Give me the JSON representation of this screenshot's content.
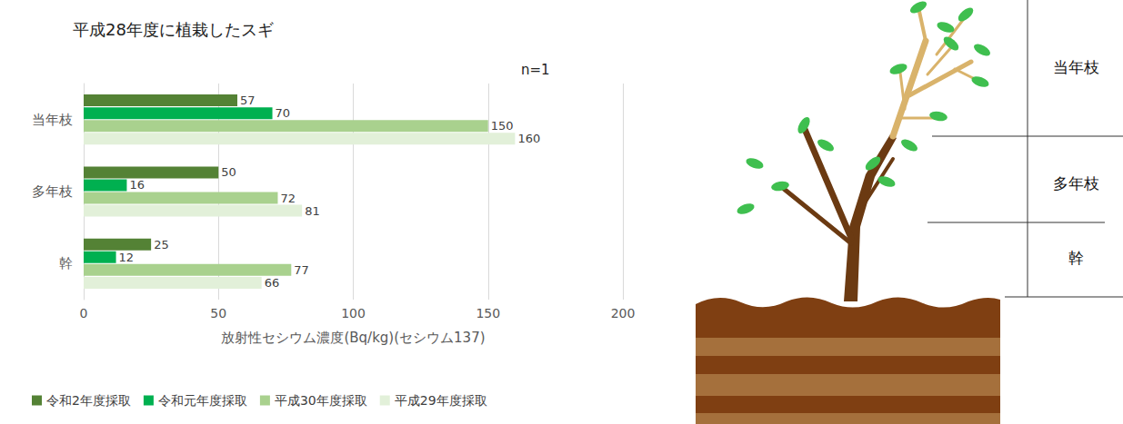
{
  "chart_data": {
    "type": "bar",
    "title": "平成28年度に植栽したスギ",
    "subtitle": "n=1",
    "orientation": "horizontal",
    "categories": [
      "当年枝",
      "多年枝",
      "幹"
    ],
    "series": [
      {
        "name": "令和2年度採取",
        "color": "#548235",
        "values": [
          57,
          50,
          25
        ]
      },
      {
        "name": "令和元年度採取",
        "color": "#00b050",
        "values": [
          70,
          16,
          12
        ]
      },
      {
        "name": "平成30年度採取",
        "color": "#a9d18e",
        "values": [
          150,
          72,
          77
        ]
      },
      {
        "name": "平成29年度採取",
        "color": "#e2f0d9",
        "values": [
          160,
          81,
          66
        ]
      }
    ],
    "x_label": "放射性セシウム濃度(Bq/kg)(セシウム137)",
    "xlim": [
      0,
      200
    ],
    "xticks": [
      0,
      50,
      100,
      150,
      200
    ],
    "grid": true,
    "data_labels": true,
    "legend": "bottom"
  },
  "diagram": {
    "labels": [
      "当年枝",
      "多年枝",
      "幹"
    ]
  }
}
